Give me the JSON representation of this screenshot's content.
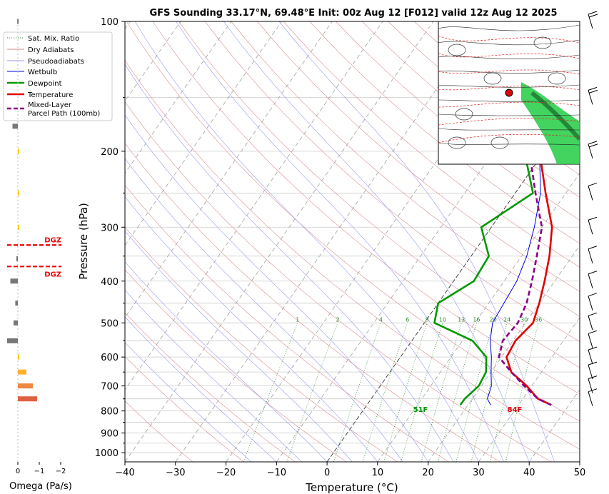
{
  "chart_data": {
    "type": "skew-t",
    "title": "GFS Sounding 33.17°N, 69.48°E Init: 00z Aug 12 [F012] valid 12z Aug 12 2025",
    "xlabel": "Temperature (°C)",
    "ylabel": "Pressure (hPa)",
    "xlim": [
      -40,
      50
    ],
    "ylim_hpa": [
      1050,
      100
    ],
    "x_ticks": [
      "−40",
      "−30",
      "−20",
      "−10",
      "0",
      "10",
      "20",
      "30",
      "40",
      "50"
    ],
    "y_ticks": [
      "100",
      "200",
      "300",
      "400",
      "500",
      "600",
      "700",
      "800",
      "900",
      "1000"
    ],
    "legend": {
      "placement": "top-left",
      "entries": [
        "Sat. Mix. Ratio",
        "Dry Adiabats",
        "Pseudoadiabats",
        "Wetbulb",
        "Dewpoint",
        "Temperature",
        "Mixed-Layer",
        "Parcel Path (100mb)"
      ]
    },
    "mixing_ratio_labels": [
      "1",
      "2",
      "4",
      "6",
      "8",
      "10",
      "13",
      "16",
      "20",
      "24",
      "30",
      "36"
    ],
    "surface_labels": {
      "temperature": "84F",
      "dewpoint": "51F"
    },
    "series": [
      {
        "name": "Temperature",
        "color": "#e00000",
        "points": [
          [
            36.5,
            775
          ],
          [
            33,
            750
          ],
          [
            29,
            700
          ],
          [
            24,
            650
          ],
          [
            21,
            600
          ],
          [
            20.5,
            550
          ],
          [
            21.5,
            500
          ],
          [
            20,
            450
          ],
          [
            18,
            400
          ],
          [
            15.5,
            350
          ],
          [
            12,
            300
          ],
          [
            6,
            250
          ],
          [
            -1,
            200
          ],
          [
            -8,
            150
          ],
          [
            -16,
            100
          ]
        ]
      },
      {
        "name": "Dewpoint",
        "color": "#009900",
        "points": [
          [
            18.5,
            775
          ],
          [
            18.5,
            750
          ],
          [
            19.5,
            700
          ],
          [
            19,
            650
          ],
          [
            17,
            600
          ],
          [
            12,
            550
          ],
          [
            2,
            500
          ],
          [
            0,
            450
          ],
          [
            4,
            400
          ],
          [
            3.5,
            350
          ],
          [
            -2,
            300
          ],
          [
            3.5,
            250
          ],
          [
            -4,
            200
          ],
          [
            -17,
            150
          ],
          [
            -19,
            100
          ]
        ]
      },
      {
        "name": "Wetbulb",
        "color": "#0000dd",
        "points": [
          [
            24.5,
            775
          ],
          [
            23,
            750
          ],
          [
            22,
            700
          ],
          [
            20,
            650
          ],
          [
            18,
            600
          ],
          [
            15.5,
            550
          ],
          [
            13.5,
            500
          ],
          [
            13,
            450
          ],
          [
            12.5,
            400
          ],
          [
            11,
            350
          ],
          [
            8.5,
            300
          ],
          [
            5,
            250
          ],
          [
            -1,
            200
          ],
          [
            -8,
            150
          ],
          [
            -16,
            100
          ]
        ]
      },
      {
        "name": "Mixed-Layer Parcel Path (100mb)",
        "color": "#880088",
        "points": [
          [
            36.5,
            775
          ],
          [
            33,
            750
          ],
          [
            28.5,
            700
          ],
          [
            24,
            650
          ],
          [
            19.5,
            600
          ],
          [
            18,
            550
          ],
          [
            18.5,
            500
          ],
          [
            17.5,
            450
          ],
          [
            15.5,
            400
          ],
          [
            13,
            350
          ],
          [
            10,
            300
          ],
          [
            4,
            250
          ],
          [
            -3,
            200
          ],
          [
            -11,
            150
          ],
          [
            -20,
            100
          ]
        ]
      }
    ],
    "omega_panel": {
      "xlabel": "Omega (Pa/s)",
      "ticks": [
        "0",
        "−1",
        "−2"
      ],
      "dgz_label": "DGZ",
      "dgz_top_hpa": 330,
      "dgz_bottom_hpa": 370,
      "bars": [
        {
          "p": 100,
          "omega": 0.03,
          "color": "#777777"
        },
        {
          "p": 175,
          "omega": 0.25,
          "color": "#777777"
        },
        {
          "p": 200,
          "omega": -0.05,
          "color": "#ffcc00"
        },
        {
          "p": 250,
          "omega": -0.07,
          "color": "#ffcc00"
        },
        {
          "p": 300,
          "omega": -0.04,
          "color": "#ffcc00"
        },
        {
          "p": 355,
          "omega": 0.07,
          "color": "#777777"
        },
        {
          "p": 400,
          "omega": 0.35,
          "color": "#777777"
        },
        {
          "p": 450,
          "omega": 0.12,
          "color": "#777777"
        },
        {
          "p": 500,
          "omega": 0.2,
          "color": "#777777"
        },
        {
          "p": 550,
          "omega": 0.5,
          "color": "#777777"
        },
        {
          "p": 600,
          "omega": -0.03,
          "color": "#ffcc00"
        },
        {
          "p": 650,
          "omega": -0.4,
          "color": "#ffb030"
        },
        {
          "p": 700,
          "omega": -0.7,
          "color": "#ee8844"
        },
        {
          "p": 750,
          "omega": -0.9,
          "color": "#e06040"
        }
      ]
    },
    "wind_barb_levels_hpa": [
      100,
      150,
      200,
      250,
      300,
      350,
      400,
      450,
      500,
      550,
      600,
      650,
      700,
      750
    ],
    "inset_map": {
      "placement": "top-right",
      "marker": "red dot"
    }
  }
}
